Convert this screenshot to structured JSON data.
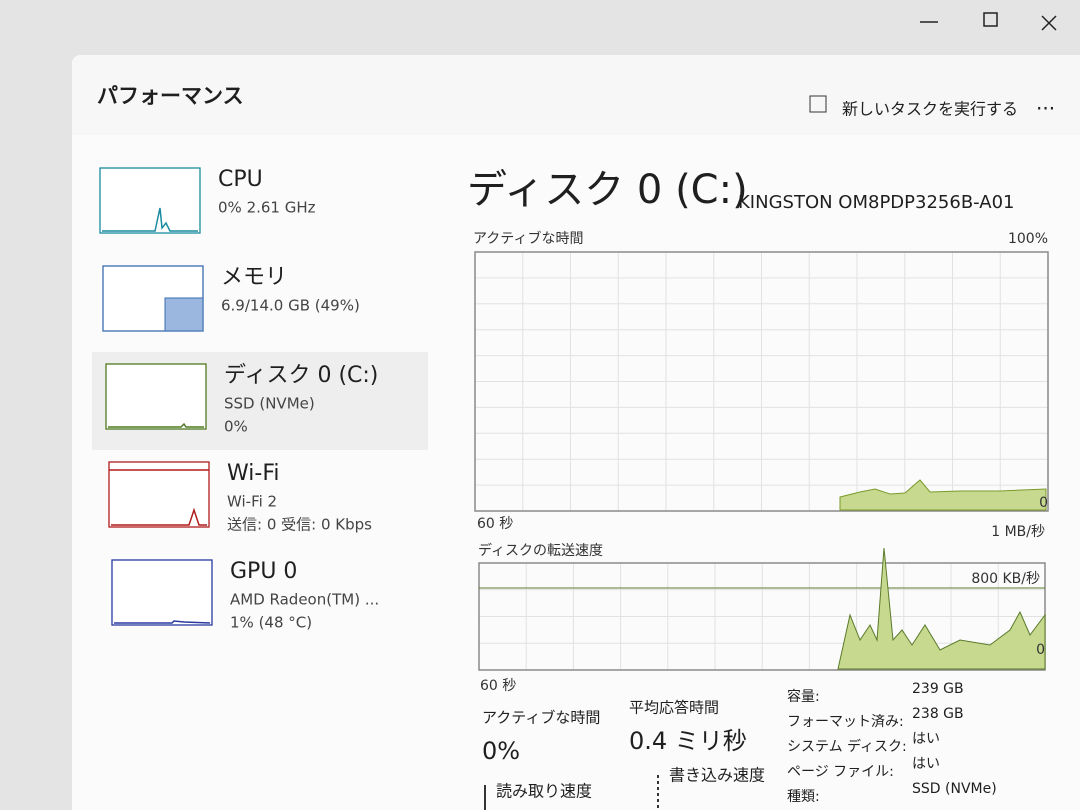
{
  "window": {
    "title": "パフォーマンス",
    "run_task": "新しいタスクを実行する"
  },
  "sidebar": [
    {
      "name": "CPU",
      "lines": [
        "0% 2.61 GHz"
      ]
    },
    {
      "name": "メモリ",
      "lines": [
        "6.9/14.0 GB (49%)"
      ]
    },
    {
      "name": "ディスク 0 (C:)",
      "lines": [
        "SSD (NVMe)",
        "0%"
      ]
    },
    {
      "name": "Wi-Fi",
      "lines": [
        "Wi-Fi 2",
        "送信: 0 受信: 0 Kbps"
      ]
    },
    {
      "name": "GPU 0",
      "lines": [
        "AMD Radeon(TM) ...",
        "1% (48 °C)"
      ]
    }
  ],
  "main": {
    "title": "ディスク 0 (C:)",
    "model": "KINGSTON OM8PDP3256B-A01",
    "active_graph": {
      "label": "アクティブな時間",
      "max": "100%",
      "min": "0",
      "time": "60 秒"
    },
    "transfer_graph": {
      "label": "ディスクの転送速度",
      "max": "1 MB/秒",
      "mid": "800 KB/秒",
      "min": "0",
      "time": "60 秒"
    },
    "stats": [
      {
        "label": "アクティブな時間",
        "value": "0%"
      },
      {
        "label": "平均応答時間",
        "value": "0.4 ミリ秒"
      }
    ],
    "speeds": [
      "読み取り速度",
      "書き込み速度"
    ],
    "properties": [
      {
        "label": "容量:",
        "value": "239 GB"
      },
      {
        "label": "フォーマット済み:",
        "value": "238 GB"
      },
      {
        "label": "システム ディスク:",
        "value": "はい"
      },
      {
        "label": "ページ ファイル:",
        "value": "はい"
      },
      {
        "label": "種類:",
        "value": "SSD (NVMe)"
      }
    ]
  }
}
